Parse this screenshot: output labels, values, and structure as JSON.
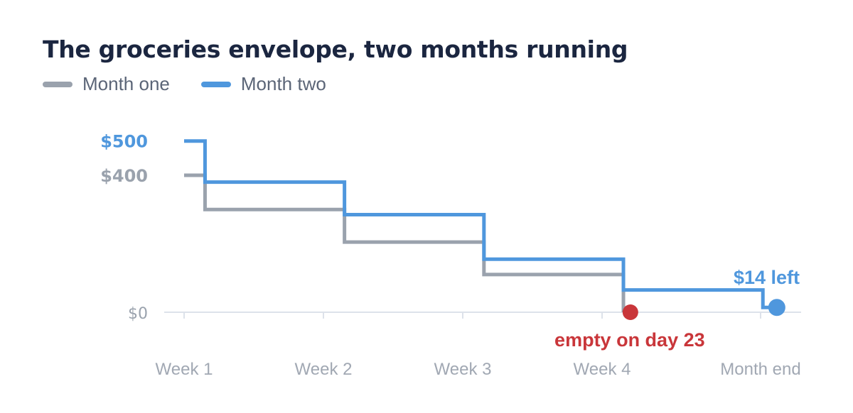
{
  "chart_data": {
    "type": "line",
    "title": "The groceries envelope, two months running",
    "x_categories": [
      "Week 1",
      "Week 2",
      "Week 3",
      "Week 4",
      "Month end"
    ],
    "y_tick_labels": [
      {
        "value": 0,
        "label": "$0",
        "color": "#9aa2ad"
      },
      {
        "value": 400,
        "label": "$400",
        "color": "#9aa2ad"
      },
      {
        "value": 500,
        "label": "$500",
        "color": "#4f97dd"
      }
    ],
    "ylim": [
      0,
      500
    ],
    "xlim": [
      0,
      30
    ],
    "series": [
      {
        "name": "Month one",
        "color": "#9aa2ad",
        "steps": [
          [
            0,
            400
          ],
          [
            1.5,
            300
          ],
          [
            11.5,
            205
          ],
          [
            21.5,
            110
          ],
          [
            31.5,
            0
          ]
        ]
      },
      {
        "name": "Month two",
        "color": "#4f97dd",
        "steps": [
          [
            0,
            500
          ],
          [
            1.5,
            380
          ],
          [
            11.5,
            285
          ],
          [
            21.5,
            155
          ],
          [
            31.5,
            65
          ],
          [
            41.5,
            14
          ]
        ]
      }
    ],
    "annotations": [
      {
        "text": "empty on day 23",
        "series": "Month one",
        "day": 32,
        "value": 0,
        "color": "#c9363a"
      },
      {
        "text": "$14 left",
        "series": "Month two",
        "day": 42.5,
        "value": 14,
        "color": "#4f97dd"
      }
    ],
    "grid": false,
    "legend_position": "top-left"
  }
}
